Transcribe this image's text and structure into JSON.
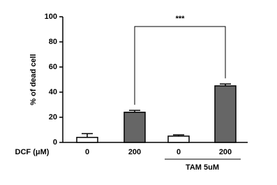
{
  "chart_data": {
    "type": "bar",
    "y_label": "% of dead cell",
    "x_label": "DCF (μM)",
    "categories": [
      "0",
      "200",
      "0",
      "200"
    ],
    "values": [
      4,
      24,
      5,
      45
    ],
    "errors": [
      3,
      1.5,
      1,
      1.5
    ],
    "colors": [
      "#ffffff",
      "#666666",
      "#ffffff",
      "#666666"
    ],
    "group_label": "TAM 5uM",
    "annotation": "***",
    "ylim": [
      0,
      100
    ],
    "yticks": [
      0,
      20,
      40,
      60,
      80,
      100
    ]
  }
}
